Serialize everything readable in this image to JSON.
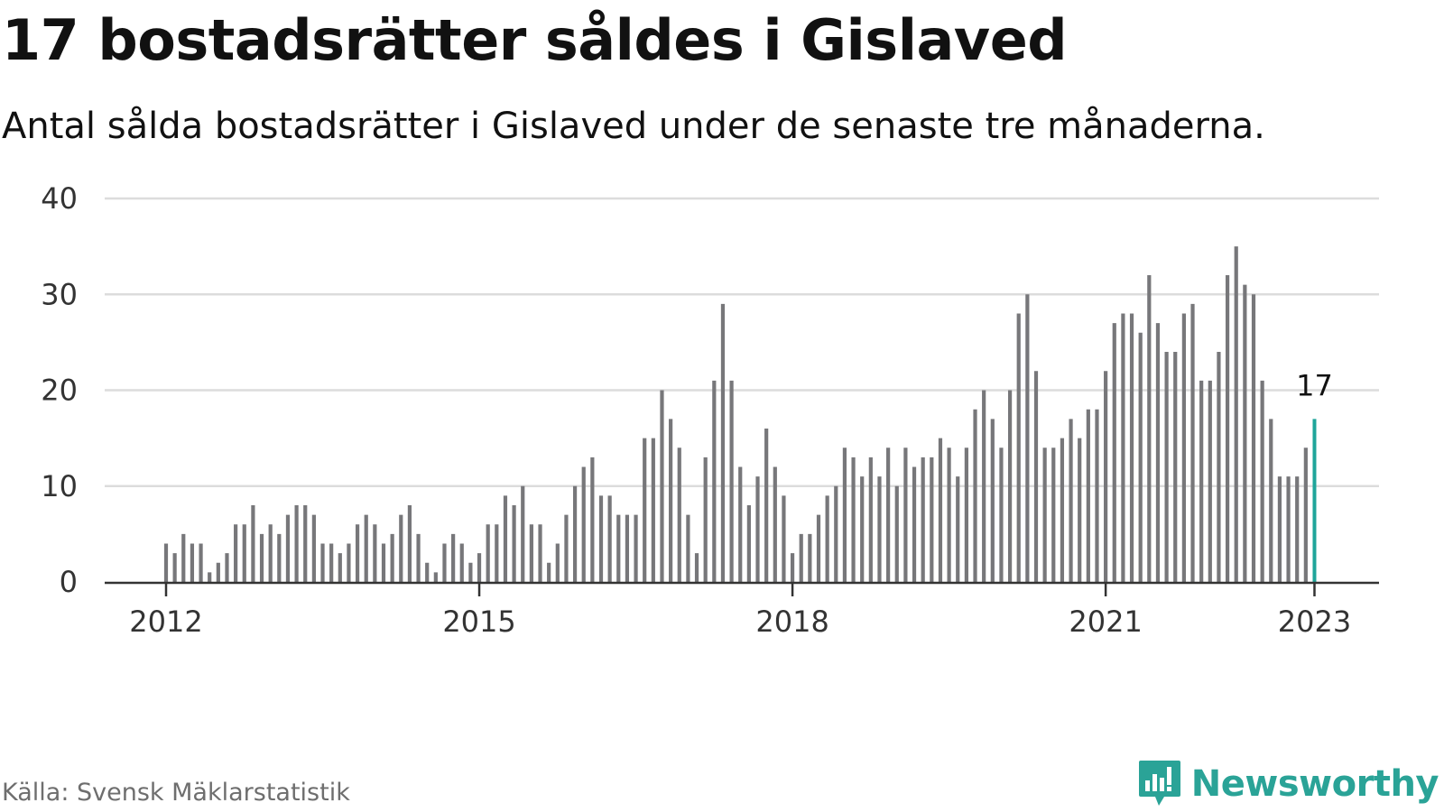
{
  "title": "17 bostadsrätter såldes i Gislaved",
  "subtitle": "Antal sålda bostadsrätter i Gislaved under de senaste tre månaderna.",
  "source": "Källa: Svensk Mäklarstatistik",
  "brand": "Newsworthy",
  "brand_icon": "newsworthy-logo-icon",
  "colors": {
    "bar": "#77777a",
    "highlight": "#1fa59a",
    "grid": "#dcdcdc",
    "axis": "#333333",
    "brand": "#2aa397"
  },
  "chart_data": {
    "type": "bar",
    "title": "17 bostadsrätter såldes i Gislaved",
    "subtitle": "Antal sålda bostadsrätter i Gislaved under de senaste tre månaderna.",
    "xlabel": "",
    "ylabel": "",
    "ylim": [
      0,
      40
    ],
    "yticks": [
      0,
      10,
      20,
      30,
      40
    ],
    "grid": true,
    "start": "2012-01",
    "x_ticks": [
      {
        "label": "2012",
        "index": 0
      },
      {
        "label": "2015",
        "index": 36
      },
      {
        "label": "2018",
        "index": 72
      },
      {
        "label": "2021",
        "index": 108
      },
      {
        "label": "2023",
        "index": 132
      }
    ],
    "values": [
      4,
      3,
      5,
      4,
      4,
      1,
      2,
      3,
      6,
      6,
      8,
      5,
      6,
      5,
      7,
      8,
      8,
      7,
      4,
      4,
      3,
      4,
      6,
      7,
      6,
      4,
      5,
      7,
      8,
      5,
      2,
      1,
      4,
      5,
      4,
      2,
      3,
      6,
      6,
      9,
      8,
      10,
      6,
      6,
      2,
      4,
      7,
      10,
      12,
      13,
      9,
      9,
      7,
      7,
      7,
      15,
      15,
      20,
      17,
      14,
      7,
      3,
      13,
      21,
      29,
      21,
      12,
      8,
      11,
      16,
      12,
      9,
      3,
      5,
      5,
      7,
      9,
      10,
      14,
      13,
      11,
      13,
      11,
      14,
      10,
      14,
      12,
      13,
      13,
      15,
      14,
      11,
      14,
      18,
      20,
      17,
      14,
      20,
      28,
      30,
      22,
      14,
      14,
      15,
      17,
      15,
      18,
      18,
      22,
      27,
      28,
      28,
      26,
      32,
      27,
      24,
      24,
      28,
      29,
      21,
      21,
      24,
      32,
      35,
      31,
      30,
      21,
      17,
      11,
      11,
      11,
      14,
      17
    ],
    "highlight": {
      "index": 132,
      "value": 17,
      "label": "17"
    }
  }
}
